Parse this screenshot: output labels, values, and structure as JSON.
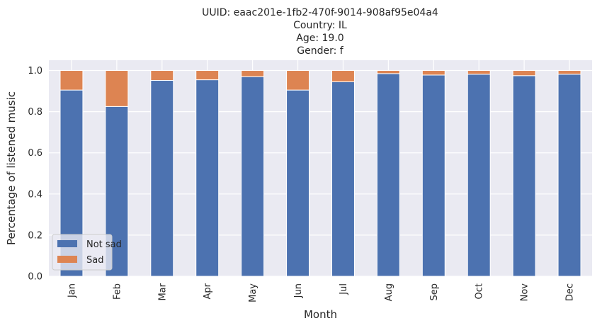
{
  "chart_data": {
    "type": "bar",
    "stacked": true,
    "title_lines": [
      "UUID: eaac201e-1fb2-470f-9014-908af95e04a4",
      "Country: IL",
      "Age: 19.0",
      "Gender: f"
    ],
    "xlabel": "Month",
    "ylabel": "Percentage of listened music",
    "categories": [
      "Jan",
      "Feb",
      "Mar",
      "Apr",
      "May",
      "Jun",
      "Jul",
      "Aug",
      "Sep",
      "Oct",
      "Nov",
      "Dec"
    ],
    "series": [
      {
        "name": "Not sad",
        "color": "#4c72b0",
        "values": [
          0.905,
          0.825,
          0.952,
          0.955,
          0.97,
          0.905,
          0.945,
          0.985,
          0.978,
          0.982,
          0.975,
          0.982
        ]
      },
      {
        "name": "Sad",
        "color": "#dd8452",
        "values": [
          0.095,
          0.175,
          0.048,
          0.045,
          0.03,
          0.095,
          0.055,
          0.015,
          0.022,
          0.018,
          0.025,
          0.018
        ]
      }
    ],
    "ylim": [
      0,
      1.05
    ],
    "yticks": [
      "0.0",
      "0.2",
      "0.4",
      "0.6",
      "0.8",
      "1.0"
    ],
    "grid": true,
    "legend_position": "lower-left",
    "background_color": "#eaeaf2",
    "grid_color": "#ffffff"
  }
}
